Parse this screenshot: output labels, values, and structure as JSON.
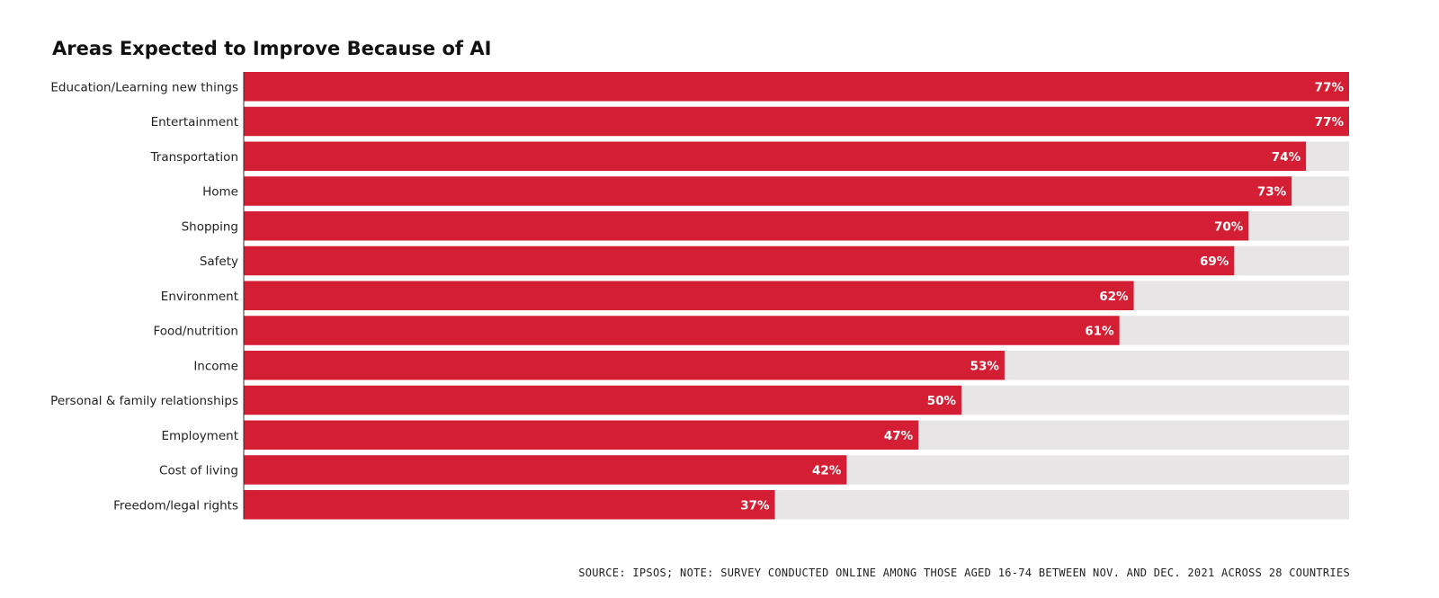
{
  "colors": {
    "bar": "#d41e34",
    "track": "#e7e5e6",
    "axis": "#333333"
  },
  "chart_data": {
    "type": "bar",
    "orientation": "horizontal",
    "title": "Areas Expected to Improve Because of AI",
    "categories": [
      "Education/Learning new things",
      "Entertainment",
      "Transportation",
      "Home",
      "Shopping",
      "Safety",
      "Environment",
      "Food/nutrition",
      "Income",
      "Personal & family relationships",
      "Employment",
      "Cost of living",
      "Freedom/legal rights"
    ],
    "values": [
      77,
      77,
      74,
      73,
      70,
      69,
      62,
      61,
      53,
      50,
      47,
      42,
      37
    ],
    "value_labels": [
      "77%",
      "77%",
      "74%",
      "73%",
      "70%",
      "69%",
      "62%",
      "61%",
      "53%",
      "50%",
      "47%",
      "42%",
      "37%"
    ],
    "xlim": [
      0,
      77
    ],
    "unit": "%",
    "grid": false,
    "legend": "none"
  },
  "source_note": "SOURCE: IPSOS; NOTE: SURVEY CONDUCTED ONLINE AMONG THOSE AGED 16-74 BETWEEN NOV. AND DEC. 2021 ACROSS 28 COUNTRIES"
}
